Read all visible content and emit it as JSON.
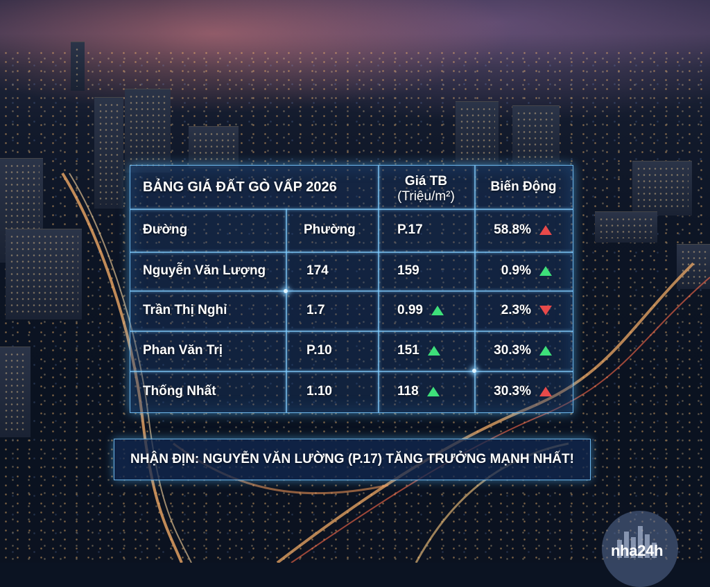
{
  "table": {
    "title": "BẢNG GIÁ ĐẤT GÒ VẤP 2026",
    "header_price_line1": "Giá TB",
    "header_price_line2": "(Triệu/m²)",
    "header_change": "Biến Động",
    "col_street": "Đường",
    "col_ward": "Phường",
    "rows": [
      {
        "c1": "Đường",
        "c2": "Phường",
        "c3": "P.17",
        "c4": "58.8%",
        "c3_arrow": "",
        "c4_arrow": "up-red"
      },
      {
        "c1": "Nguyễn Văn Lượng",
        "c2": "174",
        "c3": "159",
        "c4": "0.9%",
        "c3_arrow": "",
        "c4_arrow": "up-green"
      },
      {
        "c1": "Trần Thị Nghỉ",
        "c2": "1.7",
        "c3": "0.99",
        "c4": "2.3%",
        "c3_arrow": "up-green",
        "c4_arrow": "down-red"
      },
      {
        "c1": "Phan Văn Trị",
        "c2": "P.10",
        "c3": "151",
        "c4": "30.3%",
        "c3_arrow": "up-green",
        "c4_arrow": "up-green"
      },
      {
        "c1": "Thống Nhất",
        "c2": "1.10",
        "c3": "118",
        "c4": "30.3%",
        "c3_arrow": "up-green",
        "c4_arrow": "up-red"
      }
    ]
  },
  "conclusion": "NHẬN ĐỊN: NGUYỄN VĂN LƯỜNG (P.17) TĂNG TRƯỞNG MẠNH NHẤT!",
  "logo": {
    "text": "nha24h"
  },
  "colors": {
    "up_green": "#3ee07a",
    "red": "#e84a4a",
    "frame": "#78c8ff"
  }
}
